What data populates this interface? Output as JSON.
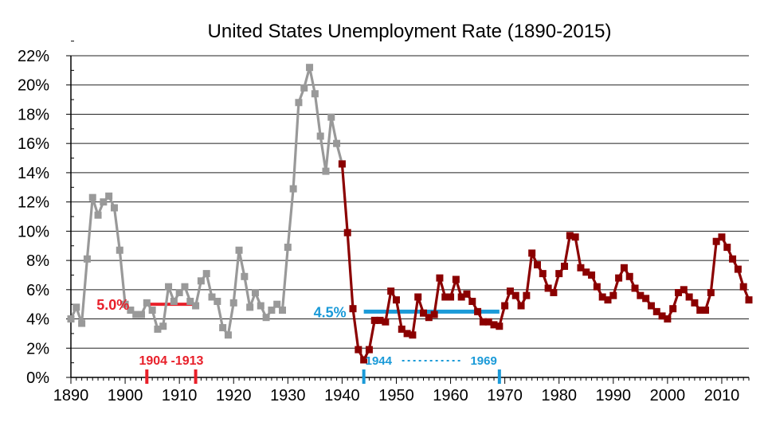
{
  "chart_data": {
    "type": "line",
    "title": "United States Unemployment Rate (1890-2015)",
    "xlabel": "",
    "ylabel": "",
    "xlim": [
      1890,
      2015
    ],
    "ylim": [
      0,
      22
    ],
    "grid": "horizontal",
    "x_ticks": [
      1890,
      1900,
      1910,
      1920,
      1930,
      1940,
      1950,
      1960,
      1970,
      1980,
      1990,
      2000,
      2010
    ],
    "x_tick_labels": [
      "1890",
      "1900",
      "1910",
      "1920",
      "1930",
      "1940",
      "1950",
      "1960",
      "1970",
      "1980",
      "1990",
      "2000",
      "2010"
    ],
    "y_ticks": [
      0,
      2,
      4,
      6,
      8,
      10,
      12,
      14,
      16,
      18,
      20,
      22
    ],
    "y_tick_labels": [
      "0%",
      "2%",
      "4%",
      "6%",
      "8%",
      "10%",
      "12%",
      "14%",
      "16%",
      "18%",
      "20%",
      "22%"
    ],
    "series": [
      {
        "color": "#999999",
        "x": [
          1890,
          1891,
          1892,
          1893,
          1894,
          1895,
          1896,
          1897,
          1898,
          1899,
          1900,
          1901,
          1902,
          1903,
          1904,
          1905,
          1906,
          1907,
          1908,
          1909,
          1910,
          1911,
          1912,
          1913,
          1914,
          1915,
          1916,
          1917,
          1918,
          1919,
          1920,
          1921,
          1922,
          1923,
          1924,
          1925,
          1926,
          1927,
          1928,
          1929,
          1930,
          1931,
          1932,
          1933,
          1934,
          1935,
          1936,
          1937,
          1938,
          1939,
          1940
        ],
        "values": [
          4.0,
          4.8,
          3.7,
          8.1,
          12.3,
          11.1,
          12.0,
          12.4,
          11.6,
          8.7,
          5.0,
          4.6,
          4.3,
          4.3,
          5.1,
          4.6,
          3.3,
          3.5,
          6.2,
          5.2,
          5.8,
          6.2,
          5.2,
          4.9,
          6.6,
          7.1,
          5.5,
          5.2,
          3.4,
          2.9,
          5.1,
          8.7,
          6.9,
          4.8,
          5.8,
          4.9,
          4.1,
          4.6,
          5.0,
          4.6,
          8.9,
          12.9,
          18.8,
          19.8,
          21.2,
          19.4,
          16.5,
          14.1,
          17.8,
          16.0,
          14.6
        ]
      },
      {
        "color": "#8b0000",
        "x": [
          1940,
          1941,
          1942,
          1943,
          1944,
          1945,
          1946,
          1947,
          1948,
          1949,
          1950,
          1951,
          1952,
          1953,
          1954,
          1955,
          1956,
          1957,
          1958,
          1959,
          1960,
          1961,
          1962,
          1963,
          1964,
          1965,
          1966,
          1967,
          1968,
          1969,
          1970,
          1971,
          1972,
          1973,
          1974,
          1975,
          1976,
          1977,
          1978,
          1979,
          1980,
          1981,
          1982,
          1983,
          1984,
          1985,
          1986,
          1987,
          1988,
          1989,
          1990,
          1991,
          1992,
          1993,
          1994,
          1995,
          1996,
          1997,
          1998,
          1999,
          2000,
          2001,
          2002,
          2003,
          2004,
          2005,
          2006,
          2007,
          2008,
          2009,
          2010,
          2011,
          2012,
          2013,
          2014,
          2015
        ],
        "values": [
          14.6,
          9.9,
          4.7,
          1.9,
          1.2,
          1.9,
          3.9,
          3.9,
          3.8,
          5.9,
          5.3,
          3.3,
          3.0,
          2.9,
          5.5,
          4.4,
          4.1,
          4.3,
          6.8,
          5.5,
          5.5,
          6.7,
          5.5,
          5.7,
          5.2,
          4.5,
          3.8,
          3.8,
          3.6,
          3.5,
          4.9,
          5.9,
          5.6,
          4.9,
          5.6,
          8.5,
          7.7,
          7.1,
          6.1,
          5.8,
          7.1,
          7.6,
          9.7,
          9.6,
          7.5,
          7.2,
          7.0,
          6.2,
          5.5,
          5.3,
          5.6,
          6.8,
          7.5,
          6.9,
          6.1,
          5.6,
          5.4,
          4.9,
          4.5,
          4.2,
          4.0,
          4.7,
          5.8,
          6.0,
          5.5,
          5.1,
          4.6,
          4.6,
          5.8,
          9.3,
          9.6,
          8.9,
          8.1,
          7.4,
          6.2,
          5.3
        ]
      }
    ],
    "annotations": [
      {
        "label": "5.0%",
        "value": 5.0,
        "x_start": 1904,
        "x_end": 1913,
        "color": "#e8202a",
        "period_label": "1904 -1913"
      },
      {
        "label": "4.5%",
        "value": 4.5,
        "x_start": 1944,
        "x_end": 1969,
        "color": "#1a9ad8",
        "period_start_label": "1944",
        "period_end_label": "1969"
      }
    ]
  }
}
